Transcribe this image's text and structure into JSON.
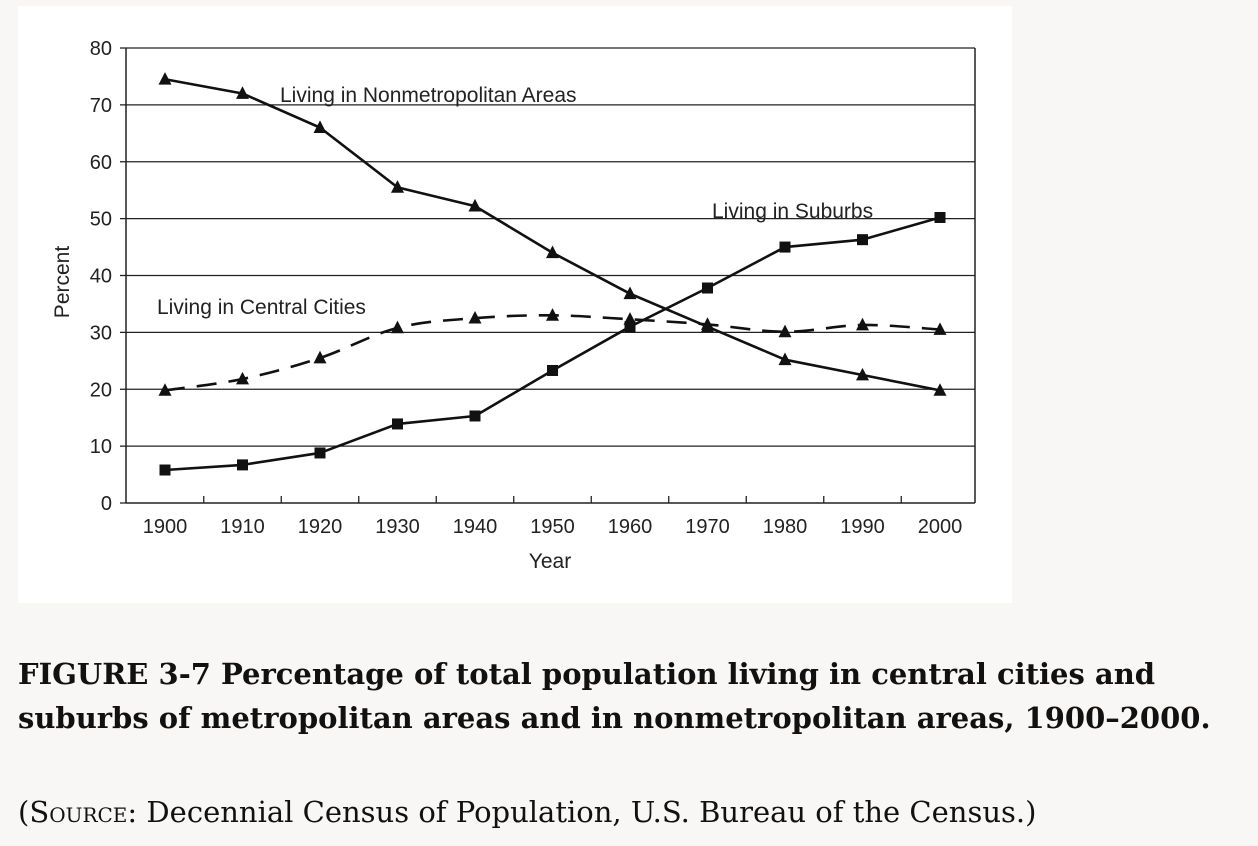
{
  "chart_data": {
    "type": "line",
    "xlabel": "Year",
    "ylabel": "Percent",
    "x": [
      1900,
      1910,
      1920,
      1930,
      1940,
      1950,
      1960,
      1970,
      1980,
      1990,
      2000
    ],
    "xticks": [
      "1900",
      "1910",
      "1920",
      "1930",
      "1940",
      "1950",
      "1960",
      "1970",
      "1980",
      "1990",
      "2000"
    ],
    "yticks": [
      "0",
      "10",
      "20",
      "30",
      "40",
      "50",
      "60",
      "70",
      "80"
    ],
    "ylim": [
      0,
      80
    ],
    "grid": "horizontal",
    "series": [
      {
        "name": "Living in Nonmetropolitan Areas",
        "marker": "triangle",
        "line_style": "solid",
        "values": [
          74.5,
          72,
          66,
          55.5,
          52.2,
          44,
          36.8,
          31,
          25.2,
          22.5,
          19.8
        ]
      },
      {
        "name": "Living in Central Cities",
        "marker": "triangle",
        "line_style": "dashed",
        "values": [
          19.8,
          21.8,
          25.5,
          30.8,
          32.5,
          33,
          32.3,
          31.4,
          30.1,
          31.3,
          30.5
        ]
      },
      {
        "name": "Living in Suburbs",
        "marker": "square",
        "line_style": "solid",
        "values": [
          5.8,
          6.7,
          8.8,
          13.9,
          15.3,
          23.3,
          31,
          37.8,
          45,
          46.3,
          50.2
        ]
      }
    ],
    "line_color": "#111111",
    "grid_color": "#222222"
  },
  "caption": {
    "figure": "FIGURE 3-7 Percentage of total population living in central cities and suburbs of metropolitan areas and in nonmetropolitan areas, 1900–2000.",
    "source_open": "(",
    "source_sc": "Source",
    "source_rest": ": Decennial Census of Population, U.S. Bureau of the Census.)"
  }
}
